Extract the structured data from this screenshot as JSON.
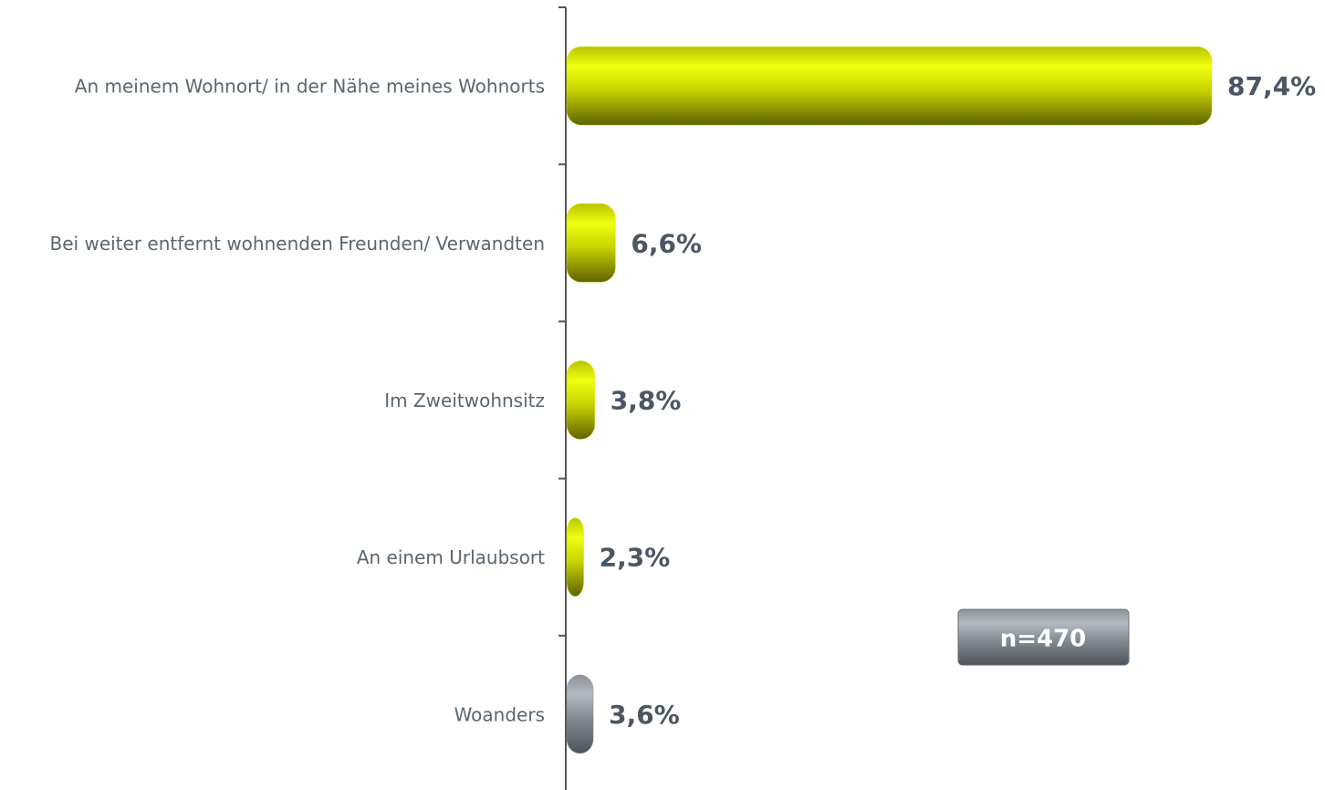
{
  "chart_data": {
    "type": "barh",
    "categories": [
      "An meinem Wohnort/ in der Nähe meines Wohnorts",
      "Bei weiter entfernt wohnenden Freunden/ Verwandten",
      "Im Zweitwohnsitz",
      "An einem Urlaubsort",
      "Woanders"
    ],
    "values": [
      87.4,
      6.6,
      3.8,
      2.3,
      3.6
    ],
    "value_labels": [
      "87,4%",
      "6,6%",
      "3,8%",
      "2,3%",
      "3,6%"
    ],
    "colors": [
      "#d8e600",
      "#d8e600",
      "#d8e600",
      "#d8e600",
      "#7a8088"
    ],
    "annotation": "n=470"
  }
}
